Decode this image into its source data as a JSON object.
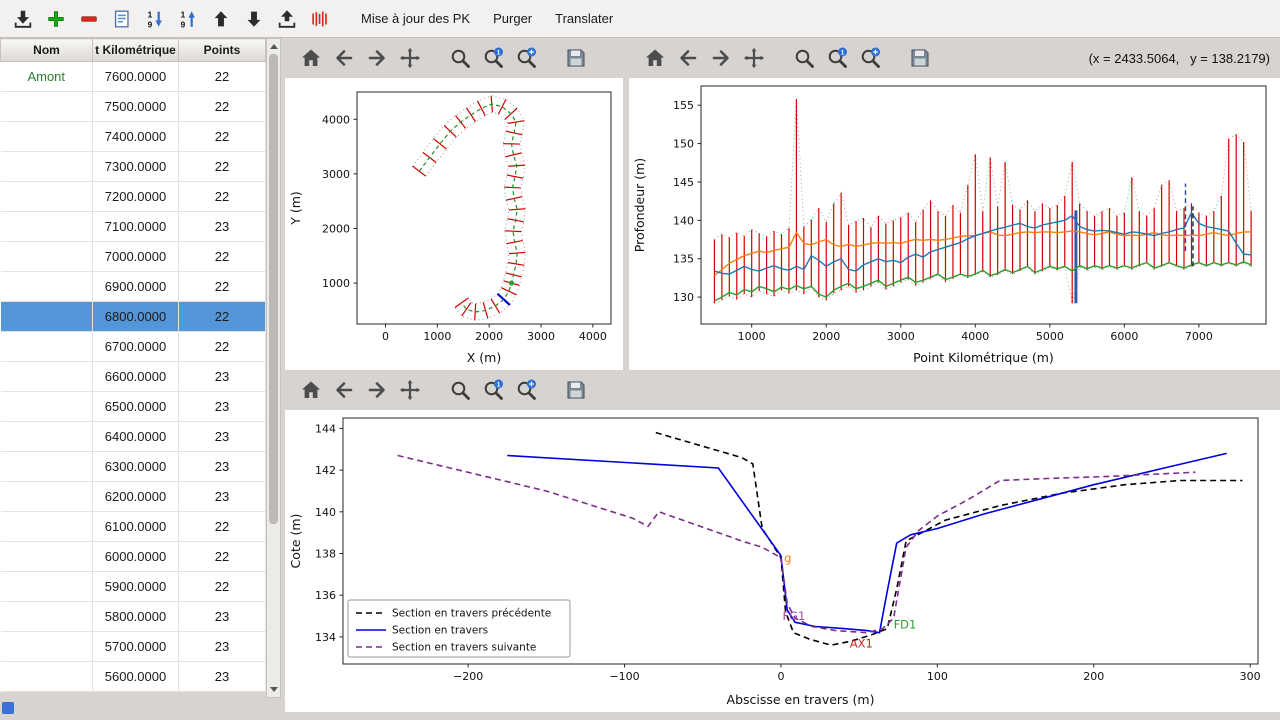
{
  "colors": {
    "selection": "#5596d8",
    "toolbar_bg": "#f3f1ef",
    "window_bg": "#d6d3d0",
    "accent_blue": "#2d6fd2"
  },
  "toolbar": {
    "icons": [
      "import-icon",
      "add-icon",
      "remove-icon",
      "edit-list-icon",
      "sort-asc-icon",
      "sort-desc-icon",
      "move-up-icon",
      "move-down-icon",
      "export-icon",
      "sections-icon"
    ],
    "text_buttons": [
      "Mise à jour des PK",
      "Purger",
      "Translater"
    ]
  },
  "plot_toolbar": {
    "icons": [
      "home-icon",
      "back-icon",
      "forward-icon",
      "pan-icon",
      "zoom-icon",
      "zoom-one-icon",
      "zoom-rect-icon",
      "save-icon"
    ]
  },
  "coords_readout": "(x = 2433.5064,   y = 138.2179)",
  "table": {
    "columns": [
      "Nom",
      "t Kilométrique",
      "Points"
    ],
    "selected_pk": "6800.0000",
    "rows": [
      [
        "Amont",
        "7600.0000",
        "22"
      ],
      [
        "",
        "7500.0000",
        "22"
      ],
      [
        "",
        "7400.0000",
        "22"
      ],
      [
        "",
        "7300.0000",
        "22"
      ],
      [
        "",
        "7200.0000",
        "22"
      ],
      [
        "",
        "7100.0000",
        "23"
      ],
      [
        "",
        "7000.0000",
        "22"
      ],
      [
        "",
        "6900.0000",
        "22"
      ],
      [
        "",
        "6800.0000",
        "22"
      ],
      [
        "",
        "6700.0000",
        "22"
      ],
      [
        "",
        "6600.0000",
        "23"
      ],
      [
        "",
        "6500.0000",
        "23"
      ],
      [
        "",
        "6400.0000",
        "23"
      ],
      [
        "",
        "6300.0000",
        "23"
      ],
      [
        "",
        "6200.0000",
        "23"
      ],
      [
        "",
        "6100.0000",
        "22"
      ],
      [
        "",
        "6000.0000",
        "22"
      ],
      [
        "",
        "5900.0000",
        "22"
      ],
      [
        "",
        "5800.0000",
        "23"
      ],
      [
        "",
        "5700.0000",
        "23"
      ],
      [
        "",
        "5600.0000",
        "23"
      ]
    ]
  },
  "chart_data": [
    {
      "type": "line",
      "title": "",
      "xlabel": "X (m)",
      "ylabel": "Y (m)",
      "xlim": [
        -550,
        4350
      ],
      "ylim": [
        250,
        4500
      ],
      "xticks": [
        0,
        1000,
        2000,
        3000,
        4000
      ],
      "yticks": [
        1000,
        2000,
        3000,
        4000
      ],
      "centerline": [
        [
          650,
          3050
        ],
        [
          850,
          3300
        ],
        [
          1050,
          3550
        ],
        [
          1250,
          3780
        ],
        [
          1450,
          3950
        ],
        [
          1650,
          4080
        ],
        [
          1850,
          4200
        ],
        [
          2050,
          4280
        ],
        [
          2250,
          4230
        ],
        [
          2420,
          4100
        ],
        [
          2520,
          3950
        ],
        [
          2480,
          3750
        ],
        [
          2430,
          3550
        ],
        [
          2470,
          3350
        ],
        [
          2530,
          3150
        ],
        [
          2500,
          2950
        ],
        [
          2450,
          2750
        ],
        [
          2480,
          2550
        ],
        [
          2540,
          2350
        ],
        [
          2510,
          2150
        ],
        [
          2460,
          1950
        ],
        [
          2490,
          1750
        ],
        [
          2540,
          1550
        ],
        [
          2520,
          1350
        ],
        [
          2470,
          1150
        ],
        [
          2430,
          1000
        ],
        [
          2380,
          850
        ],
        [
          2280,
          700
        ],
        [
          2120,
          580
        ],
        [
          1930,
          500
        ],
        [
          1730,
          470
        ],
        [
          1560,
          520
        ],
        [
          1470,
          640
        ]
      ],
      "section_half_length": 160,
      "selected_section_index": 27,
      "marker_index": 25,
      "colors": {
        "sections": "#d40000",
        "centerline": "#2e8b2e",
        "banks": "#9a9a9a",
        "selected": "#0000cc",
        "marker": "#2ca02c"
      }
    },
    {
      "type": "line",
      "title": "",
      "xlabel": "Point Kilométrique (m)",
      "ylabel": "Profondeur (m)",
      "xlim": [
        320,
        7900
      ],
      "ylim": [
        126.5,
        157.5
      ],
      "xticks": [
        1000,
        2000,
        3000,
        4000,
        5000,
        6000,
        7000
      ],
      "yticks": [
        130,
        135,
        140,
        145,
        150,
        155
      ],
      "x": [
        500,
        600,
        700,
        800,
        900,
        1000,
        1100,
        1200,
        1300,
        1400,
        1500,
        1600,
        1700,
        1800,
        1900,
        2000,
        2100,
        2200,
        2300,
        2400,
        2500,
        2600,
        2700,
        2800,
        2900,
        3000,
        3100,
        3200,
        3300,
        3400,
        3500,
        3600,
        3700,
        3800,
        3900,
        4000,
        4100,
        4200,
        4300,
        4400,
        4500,
        4600,
        4700,
        4800,
        4900,
        5000,
        5100,
        5200,
        5300,
        5400,
        5500,
        5600,
        5700,
        5800,
        5900,
        6000,
        6100,
        6200,
        6300,
        6400,
        6500,
        6600,
        6700,
        6800,
        6900,
        7000,
        7100,
        7200,
        7300,
        7400,
        7500,
        7600,
        7700
      ],
      "bars_top": [
        137.5,
        138.2,
        137.8,
        138.4,
        138.0,
        138.8,
        138.3,
        137.9,
        138.6,
        138.2,
        139.0,
        155.8,
        139.2,
        140.1,
        141.6,
        139.8,
        142.2,
        143.6,
        139.4,
        139.9,
        140.3,
        139.1,
        140.6,
        139.6,
        140.0,
        140.4,
        141.0,
        139.8,
        141.4,
        142.6,
        141.2,
        140.6,
        142.0,
        141.0,
        144.6,
        148.6,
        141.2,
        148.2,
        141.8,
        147.6,
        142.0,
        141.4,
        142.6,
        141.2,
        142.2,
        141.6,
        142.0,
        143.2,
        147.6,
        142.2,
        141.2,
        140.6,
        141.2,
        141.6,
        140.6,
        141.0,
        145.6,
        141.2,
        140.6,
        141.6,
        144.6,
        145.2,
        141.2,
        141.6,
        142.2,
        141.0,
        140.6,
        141.2,
        143.2,
        150.6,
        151.2,
        150.2,
        141.2
      ],
      "bars_bottom": [
        129.2,
        129.6,
        130.1,
        129.7,
        130.4,
        130.0,
        130.8,
        130.4,
        130.1,
        130.9,
        130.5,
        130.9,
        130.4,
        131.3,
        130.0,
        129.6,
        130.5,
        130.9,
        131.4,
        130.6,
        130.9,
        131.4,
        131.9,
        131.0,
        131.4,
        131.9,
        132.3,
        131.5,
        131.9,
        132.4,
        132.9,
        132.0,
        132.4,
        132.9,
        132.5,
        132.9,
        133.3,
        132.6,
        132.9,
        133.4,
        133.0,
        133.4,
        133.9,
        133.0,
        133.4,
        133.9,
        133.5,
        133.9,
        129.2,
        133.9,
        133.5,
        133.9,
        133.6,
        134.0,
        133.6,
        134.0,
        133.6,
        134.0,
        134.4,
        133.6,
        134.0,
        134.4,
        134.0,
        133.6,
        134.0,
        134.4,
        134.0,
        134.4,
        134.0,
        134.4,
        134.0,
        134.4,
        134.0
      ],
      "series": [
        {
          "name": "orange",
          "color": "#ff7f0e",
          "values": [
            132.8,
            133.6,
            134.4,
            134.9,
            135.4,
            135.7,
            136.0,
            135.8,
            136.1,
            136.3,
            136.5,
            138.4,
            137.0,
            136.8,
            137.2,
            137.5,
            136.8,
            136.6,
            136.9,
            136.6,
            136.8,
            137.0,
            137.1,
            137.0,
            137.1,
            137.0,
            137.3,
            137.5,
            137.4,
            137.5,
            137.4,
            137.5,
            137.7,
            137.9,
            138.0,
            138.0,
            138.3,
            138.5,
            138.1,
            138.0,
            138.2,
            138.4,
            138.5,
            138.4,
            138.5,
            138.5,
            138.4,
            138.5,
            138.6,
            138.5,
            138.3,
            138.1,
            138.3,
            138.5,
            138.2,
            138.0,
            138.1,
            138.0,
            138.2,
            138.4,
            138.1,
            138.0,
            138.1,
            138.0,
            138.1,
            138.0,
            138.2,
            138.4,
            138.2,
            138.0,
            138.3,
            138.5,
            138.5
          ]
        },
        {
          "name": "blue",
          "color": "#1f77b4",
          "values": [
            133.4,
            133.1,
            133.0,
            133.5,
            134.0,
            133.6,
            133.4,
            133.8,
            134.1,
            133.7,
            133.5,
            134.0,
            133.6,
            135.4,
            134.8,
            134.0,
            134.6,
            135.0,
            133.6,
            133.4,
            134.2,
            134.6,
            135.0,
            134.6,
            134.8,
            134.5,
            135.2,
            135.6,
            135.2,
            135.9,
            136.2,
            136.5,
            136.8,
            137.1,
            137.6,
            138.0,
            138.3,
            138.6,
            138.9,
            139.1,
            139.4,
            139.6,
            139.2,
            139.0,
            139.4,
            139.6,
            139.8,
            140.0,
            140.6,
            139.2,
            138.8,
            138.6,
            138.7,
            138.6,
            138.4,
            138.2,
            138.5,
            138.4,
            138.2,
            138.0,
            138.3,
            138.5,
            138.8,
            139.0,
            141.0,
            139.6,
            139.2,
            139.0,
            138.8,
            138.6,
            137.0,
            135.6,
            135.5
          ]
        },
        {
          "name": "green",
          "color": "#2ca02c",
          "values": [
            129.5,
            130.0,
            130.6,
            130.3,
            131.0,
            130.7,
            131.4,
            131.1,
            130.7,
            131.3,
            131.0,
            131.5,
            131.1,
            131.4,
            130.4,
            130.0,
            130.9,
            131.4,
            131.8,
            131.1,
            131.4,
            131.8,
            132.2,
            131.4,
            131.8,
            132.2,
            132.6,
            131.9,
            132.2,
            132.6,
            133.0,
            132.3,
            132.6,
            133.0,
            132.7,
            133.0,
            133.5,
            132.8,
            133.1,
            133.6,
            133.2,
            133.6,
            134.0,
            133.2,
            133.6,
            134.0,
            133.7,
            134.0,
            133.4,
            134.1,
            133.7,
            134.1,
            133.8,
            134.1,
            133.8,
            134.1,
            133.8,
            134.2,
            134.5,
            133.8,
            134.1,
            134.5,
            134.1,
            133.8,
            134.2,
            134.5,
            134.1,
            134.5,
            134.2,
            134.5,
            134.2,
            134.6,
            134.2
          ]
        }
      ],
      "colors": {
        "bars": "#d40000",
        "envelope": "#999999"
      },
      "highlight_bar": {
        "x": 5350,
        "y0": 129.2,
        "y1": 141.3,
        "color": "#3a57a7"
      },
      "cursor_lines": [
        {
          "x": 6820,
          "y0": 136.0,
          "y1": 144.8,
          "color": "#2244cc"
        },
        {
          "x": 6920,
          "y0": 134.0,
          "y1": 141.8,
          "color": "#222222"
        }
      ]
    },
    {
      "type": "line",
      "title": "",
      "xlabel": "Abscisse en travers (m)",
      "ylabel": "Cote (m)",
      "xlim": [
        -280,
        305
      ],
      "ylim": [
        132.7,
        144.5
      ],
      "xticks": [
        -200,
        -100,
        0,
        100,
        200,
        300
      ],
      "yticks": [
        134,
        136,
        138,
        140,
        142,
        144
      ],
      "legend_position": "lower left",
      "series": [
        {
          "name": "Section en travers précédente",
          "color": "#000000",
          "dash": "6,4",
          "points": [
            [
              -80,
              143.8
            ],
            [
              -25,
              142.6
            ],
            [
              -18,
              142.3
            ],
            [
              -12,
              139.2
            ],
            [
              -6,
              138.5
            ],
            [
              0,
              137.8
            ],
            [
              3,
              135.2
            ],
            [
              8,
              134.2
            ],
            [
              18,
              133.9
            ],
            [
              32,
              133.6
            ],
            [
              45,
              133.8
            ],
            [
              58,
              134.1
            ],
            [
              68,
              134.4
            ],
            [
              74,
              136.3
            ],
            [
              80,
              138.6
            ],
            [
              90,
              139.0
            ],
            [
              105,
              139.6
            ],
            [
              140,
              140.3
            ],
            [
              180,
              140.9
            ],
            [
              220,
              141.3
            ],
            [
              255,
              141.5
            ],
            [
              295,
              141.5
            ]
          ]
        },
        {
          "name": "Section en travers",
          "color": "#0000dd",
          "dash": null,
          "points": [
            [
              -175,
              142.7
            ],
            [
              -40,
              142.1
            ],
            [
              0,
              137.9
            ],
            [
              4,
              135.3
            ],
            [
              9,
              134.7
            ],
            [
              22,
              134.5
            ],
            [
              40,
              134.4
            ],
            [
              55,
              134.3
            ],
            [
              63,
              134.2
            ],
            [
              68,
              136.2
            ],
            [
              74,
              138.5
            ],
            [
              83,
              138.9
            ],
            [
              100,
              139.2
            ],
            [
              130,
              139.9
            ],
            [
              165,
              140.6
            ],
            [
              200,
              141.3
            ],
            [
              245,
              142.1
            ],
            [
              285,
              142.8
            ]
          ]
        },
        {
          "name": "Section en travers suivante",
          "color": "#7d2e8d",
          "dash": "6,4",
          "points": [
            [
              -245,
              142.7
            ],
            [
              -150,
              141.0
            ],
            [
              -95,
              139.7
            ],
            [
              -85,
              139.3
            ],
            [
              -78,
              140.0
            ],
            [
              -40,
              139.0
            ],
            [
              -25,
              138.6
            ],
            [
              -12,
              138.3
            ],
            [
              0,
              137.8
            ],
            [
              4,
              135.6
            ],
            [
              9,
              134.9
            ],
            [
              20,
              134.5
            ],
            [
              35,
              134.3
            ],
            [
              55,
              134.2
            ],
            [
              65,
              134.4
            ],
            [
              72,
              134.9
            ],
            [
              80,
              138.3
            ],
            [
              88,
              139.1
            ],
            [
              100,
              139.8
            ],
            [
              120,
              140.6
            ],
            [
              140,
              141.5
            ],
            [
              170,
              141.6
            ],
            [
              210,
              141.7
            ],
            [
              265,
              141.9
            ]
          ]
        }
      ],
      "annotations": [
        {
          "text": "g",
          "x": 2,
          "y": 137.6,
          "color": "#ff7f0e"
        },
        {
          "text": "FG1",
          "x": 1,
          "y": 134.8,
          "color": "#aa44aa"
        },
        {
          "text": "AX1",
          "x": 44,
          "y": 133.5,
          "color": "#cc2222"
        },
        {
          "text": "FD1",
          "x": 72,
          "y": 134.4,
          "color": "#2ca02c"
        }
      ]
    }
  ]
}
